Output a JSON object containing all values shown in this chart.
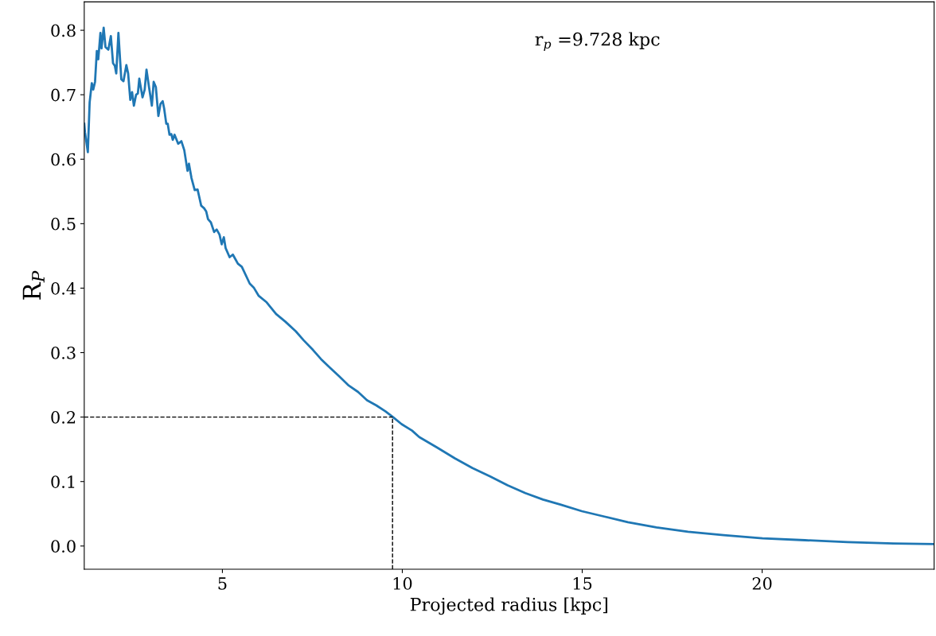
{
  "chart_data": {
    "type": "line",
    "xlabel": "Projected radius [kpc]",
    "ylabel": "R$_{P}$",
    "annotations": [
      "r$_{p}$ =9.728 kpc"
    ],
    "xlim": [
      1.16,
      24.78
    ],
    "ylim": [
      -0.036,
      0.844
    ],
    "xticks": [
      5,
      10,
      15,
      20
    ],
    "yticks": [
      {
        "value": 0,
        "label": "0.0"
      },
      0.1,
      0.2,
      0.3,
      0.4,
      0.5,
      0.6,
      0.7,
      0.8
    ],
    "grid": false,
    "line_style": "solid",
    "ref_lines": [
      {
        "axis": "y",
        "value": 0.2,
        "color": "#000000",
        "line_style": "dashed"
      },
      {
        "axis": "x",
        "value": 9.728,
        "color": "#000000",
        "line_style": "dashed"
      }
    ],
    "series": [
      {
        "color": "#1f77b4",
        "x": [
          1.16,
          1.18,
          1.26,
          1.31,
          1.37,
          1.41,
          1.46,
          1.51,
          1.55,
          1.61,
          1.64,
          1.7,
          1.75,
          1.83,
          1.9,
          1.96,
          2.01,
          2.05,
          2.11,
          2.19,
          2.25,
          2.33,
          2.38,
          2.44,
          2.49,
          2.54,
          2.6,
          2.65,
          2.69,
          2.78,
          2.84,
          2.89,
          2.96,
          3.04,
          3.09,
          3.15,
          3.22,
          3.28,
          3.34,
          3.38,
          3.44,
          3.48,
          3.53,
          3.58,
          3.62,
          3.67,
          3.77,
          3.86,
          3.94,
          4.03,
          4.07,
          4.14,
          4.23,
          4.31,
          4.41,
          4.49,
          4.55,
          4.6,
          4.68,
          4.77,
          4.84,
          4.92,
          4.98,
          5.04,
          5.09,
          5.2,
          5.29,
          5.37,
          5.43,
          5.54,
          5.76,
          5.87,
          6.01,
          6.23,
          6.49,
          6.75,
          7.04,
          7.26,
          7.52,
          7.74,
          8.0,
          8.25,
          8.51,
          8.77,
          9.02,
          9.28,
          9.53,
          9.74,
          9.98,
          10.27,
          10.47,
          10.96,
          11.46,
          11.95,
          12.44,
          12.93,
          13.42,
          13.91,
          14.41,
          14.99,
          15.59,
          16.27,
          17.06,
          17.94,
          18.93,
          20.01,
          21.19,
          22.37,
          23.65,
          24.78
        ],
        "values": [
          0.655,
          0.642,
          0.611,
          0.688,
          0.718,
          0.708,
          0.72,
          0.768,
          0.755,
          0.796,
          0.772,
          0.804,
          0.774,
          0.77,
          0.791,
          0.749,
          0.745,
          0.733,
          0.796,
          0.724,
          0.721,
          0.746,
          0.733,
          0.692,
          0.704,
          0.683,
          0.7,
          0.702,
          0.725,
          0.696,
          0.708,
          0.739,
          0.712,
          0.683,
          0.72,
          0.712,
          0.667,
          0.686,
          0.69,
          0.679,
          0.655,
          0.655,
          0.638,
          0.639,
          0.63,
          0.638,
          0.624,
          0.628,
          0.614,
          0.582,
          0.593,
          0.571,
          0.552,
          0.553,
          0.528,
          0.524,
          0.519,
          0.507,
          0.502,
          0.487,
          0.491,
          0.483,
          0.468,
          0.479,
          0.462,
          0.448,
          0.452,
          0.444,
          0.438,
          0.433,
          0.407,
          0.401,
          0.388,
          0.378,
          0.36,
          0.348,
          0.333,
          0.319,
          0.304,
          0.29,
          0.276,
          0.263,
          0.249,
          0.239,
          0.226,
          0.218,
          0.209,
          0.2,
          0.189,
          0.179,
          0.169,
          0.153,
          0.136,
          0.121,
          0.108,
          0.094,
          0.082,
          0.072,
          0.064,
          0.054,
          0.046,
          0.037,
          0.029,
          0.022,
          0.017,
          0.012,
          0.009,
          0.006,
          0.004,
          0.003
        ]
      }
    ]
  }
}
